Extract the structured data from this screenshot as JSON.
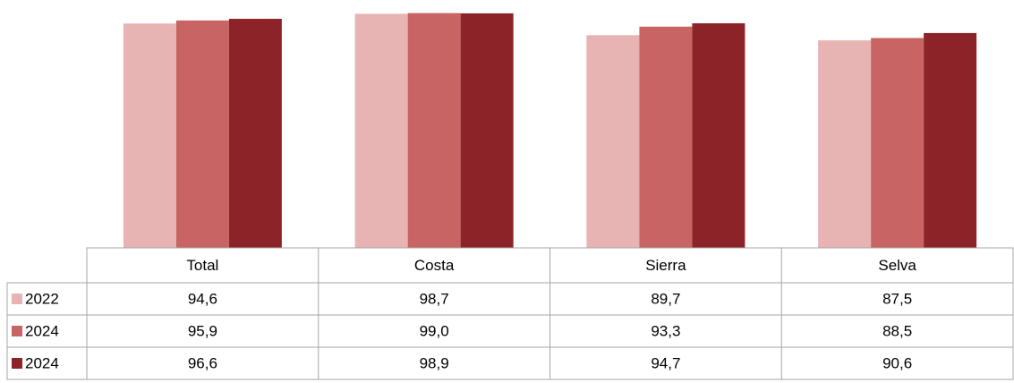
{
  "chart_data": {
    "type": "bar",
    "categories": [
      "Total",
      "Costa",
      "Sierra",
      "Selva"
    ],
    "series": [
      {
        "name": "2022",
        "color": "#e8b3b3",
        "values": [
          94.6,
          98.7,
          89.7,
          87.5
        ],
        "value_labels": [
          "94,6",
          "98,7",
          "89,7",
          "87,5"
        ]
      },
      {
        "name": "2024",
        "color": "#c86464",
        "values": [
          95.9,
          99.0,
          93.3,
          88.5
        ],
        "value_labels": [
          "95,9",
          "99,0",
          "93,3",
          "88,5"
        ]
      },
      {
        "name": "2024",
        "color": "#8c2328",
        "values": [
          96.6,
          98.9,
          94.7,
          90.6
        ],
        "value_labels": [
          "96,6",
          "98,9",
          "94,7",
          "90,6"
        ]
      }
    ],
    "ylim": [
      0,
      100
    ]
  }
}
